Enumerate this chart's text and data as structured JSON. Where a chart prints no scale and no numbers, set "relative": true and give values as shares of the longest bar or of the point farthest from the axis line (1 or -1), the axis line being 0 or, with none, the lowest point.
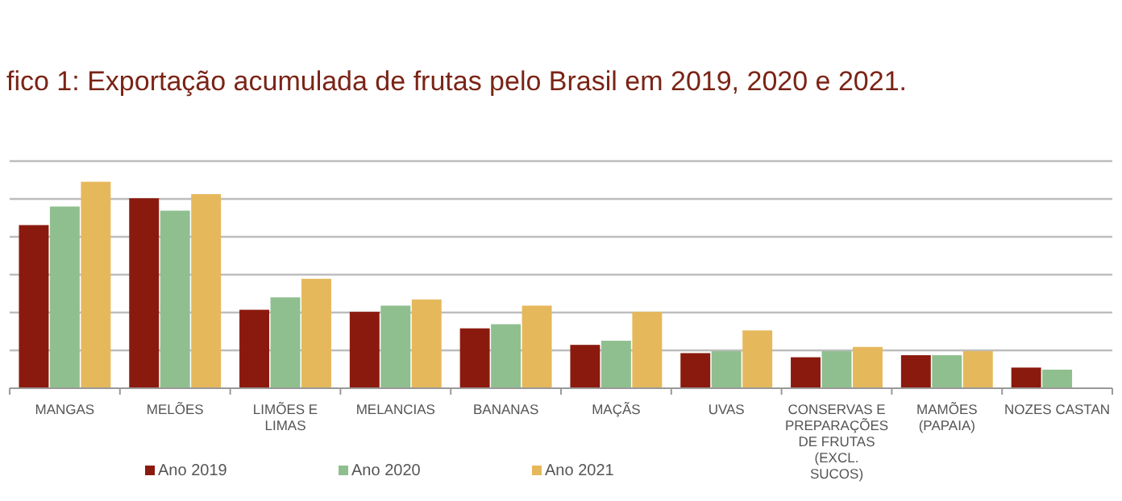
{
  "chart_data": {
    "type": "bar",
    "title": "fico 1: Exportação acumulada de frutas pelo Brasil em 2019, 2020 e 2021.",
    "relative": true,
    "grid": "y",
    "legend": "bottom",
    "categories": [
      "MANGAS",
      "MELÕES",
      "LIMÕES E LIMAS",
      "MELANCIAS",
      "BANANAS",
      "MAÇÃS",
      "UVAS",
      "CONSERVAS E PREPARAÇÕES DE FRUTAS (EXCL. SUCOS)",
      "MAMÕES (PAPAIA)",
      "NOZES CASTAN"
    ],
    "series": [
      {
        "name": "Ano 2019",
        "color": "#8b1a0e",
        "values": [
          0.79,
          0.92,
          0.38,
          0.37,
          0.29,
          0.21,
          0.17,
          0.15,
          0.16,
          0.1
        ]
      },
      {
        "name": "Ano 2020",
        "color": "#8fbf8f",
        "values": [
          0.88,
          0.86,
          0.44,
          0.4,
          0.31,
          0.23,
          0.18,
          0.18,
          0.16,
          0.09
        ]
      },
      {
        "name": "Ano 2021",
        "color": "#e6b85c",
        "values": [
          1,
          0.94,
          0.53,
          0.43,
          0.4,
          0.37,
          0.28,
          0.2,
          0.18,
          null
        ]
      }
    ]
  }
}
